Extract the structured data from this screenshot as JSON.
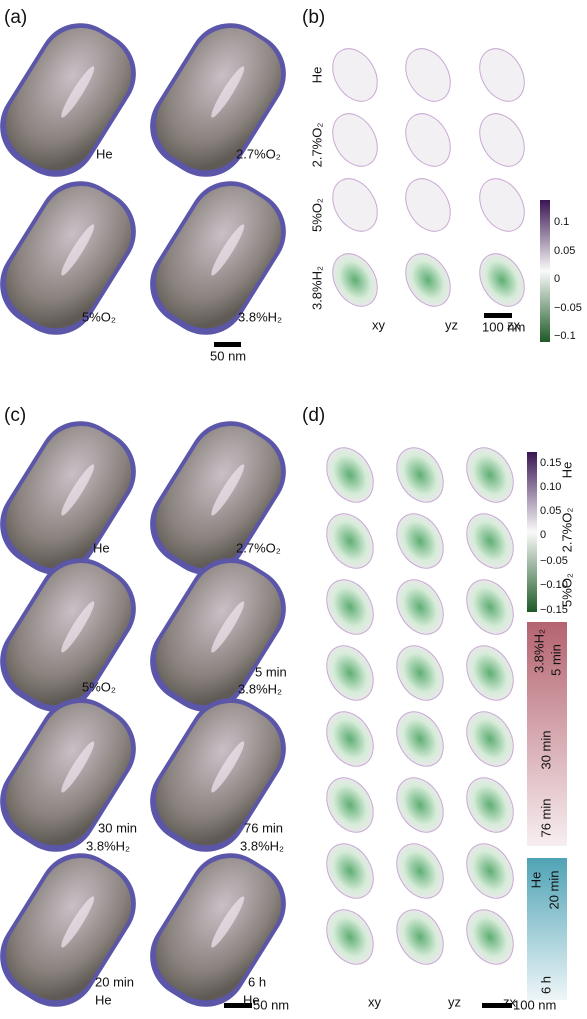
{
  "panels": {
    "a": {
      "label": "(a)",
      "captions": [
        "He",
        "2.7%O₂",
        "5%O₂",
        "3.8%H₂"
      ],
      "scale_bar": "50 nm"
    },
    "b": {
      "label": "(b)",
      "row_labels": [
        "He",
        "2.7%O₂",
        "5%O₂",
        "3.8%H₂"
      ],
      "column_labels": [
        "xy",
        "yz",
        "zx"
      ],
      "colorbar_ticks": [
        "0.1",
        "0.05",
        "0",
        "−0.05",
        "−0.1"
      ],
      "scale_bar": "100 nm"
    },
    "c": {
      "label": "(c)",
      "captions": [
        {
          "gas": "He"
        },
        {
          "gas": "2.7%O₂"
        },
        {
          "gas": "5%O₂"
        },
        {
          "time": "5 min",
          "gas": "3.8%H₂"
        },
        {
          "time": "30 min",
          "gas": "3.8%H₂"
        },
        {
          "time": "76 min",
          "gas": "3.8%H₂"
        },
        {
          "time": "20 min",
          "gas": "He"
        },
        {
          "time": "6 h",
          "gas": "He"
        }
      ],
      "scale_bar": "50 nm"
    },
    "d": {
      "label": "(d)",
      "colorbar_ticks": [
        "0.15",
        "0.10",
        "0.05",
        "0",
        "−0.05",
        "−0.10",
        "−0.15"
      ],
      "side_labels": [
        "He",
        "2.7%O₂",
        "5%O₂",
        "3.8%H₂",
        "5 min",
        "30 min",
        "76 min",
        "He",
        "20 min",
        "6 h"
      ],
      "column_labels": [
        "xy",
        "yz",
        "zx"
      ],
      "scale_bar": "100 nm"
    }
  }
}
